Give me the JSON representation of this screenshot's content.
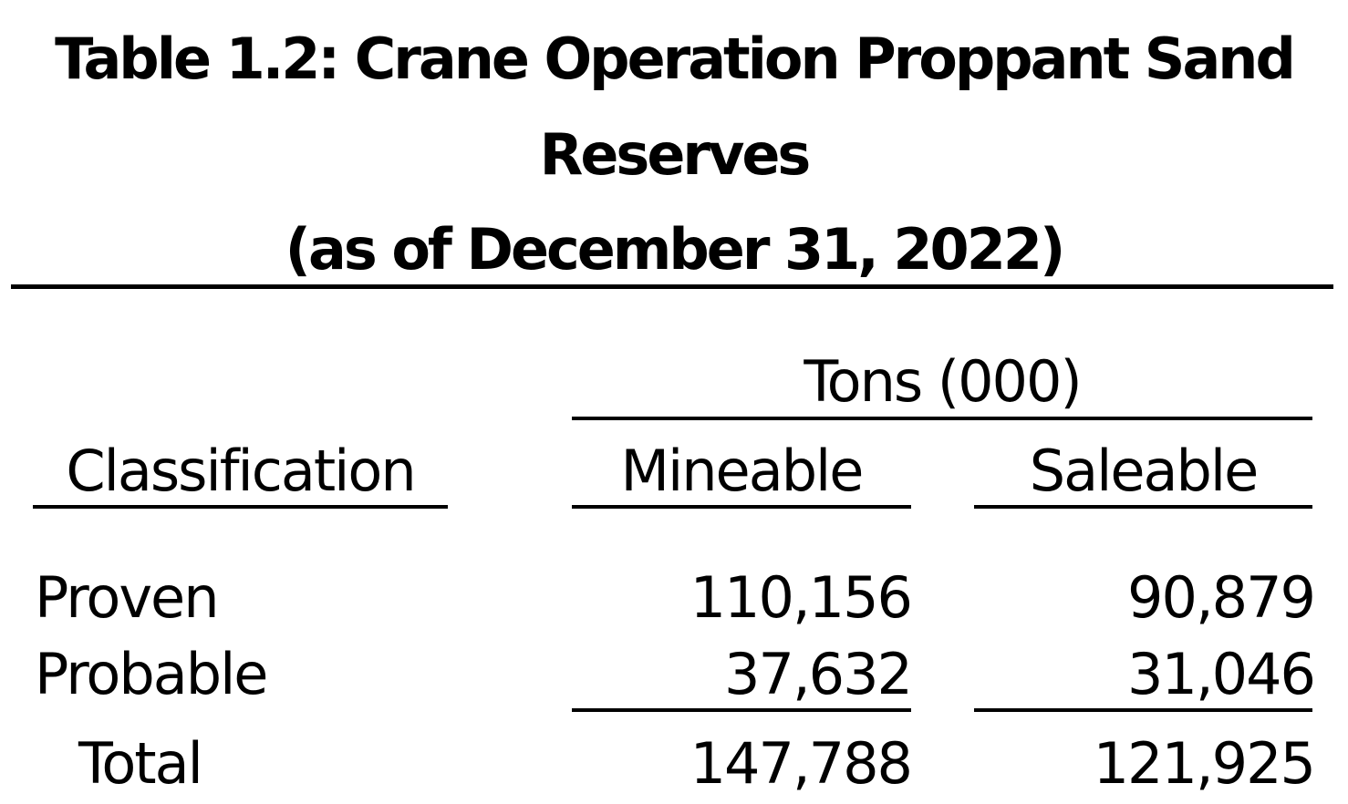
{
  "title": {
    "line1": "Table 1.2: Crane Operation Proppant Sand",
    "line2": "Reserves",
    "line3": "(as of December 31, 2022)"
  },
  "table": {
    "group_header": "Tons (000)",
    "columns": [
      "Classification",
      "Mineable",
      "Saleable"
    ],
    "rows": [
      {
        "label": "Proven",
        "mineable": "110,156",
        "saleable": "90,879"
      },
      {
        "label": "Probable",
        "mineable": "37,632",
        "saleable": "31,046"
      }
    ],
    "total": {
      "label": "Total",
      "mineable": "147,788",
      "saleable": "121,925"
    }
  }
}
